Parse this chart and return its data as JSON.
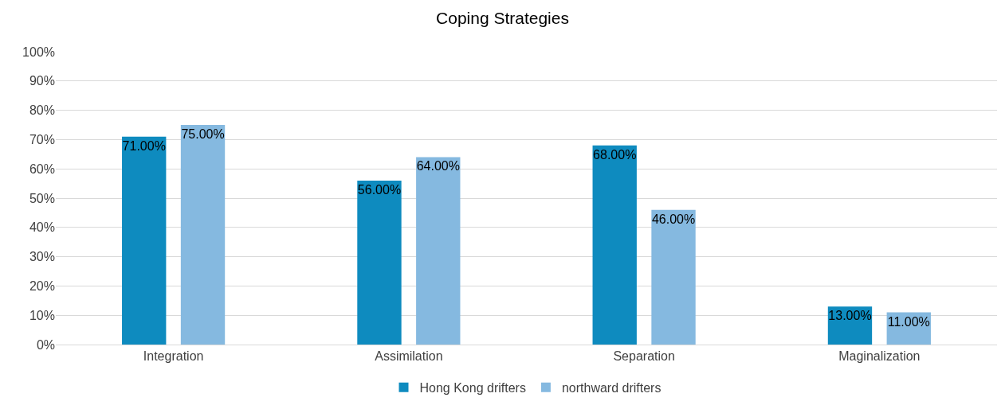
{
  "chart_data": {
    "type": "bar",
    "title": "Coping Strategies",
    "categories": [
      "Integration",
      "Assimilation",
      "Separation",
      "Maginalization"
    ],
    "series": [
      {
        "name": "Hong Kong drifters",
        "color": "#0e8bbf",
        "values": [
          71,
          56,
          68,
          13
        ],
        "value_labels": [
          "71.00%",
          "56.00%",
          "68.00%",
          "13.00%"
        ]
      },
      {
        "name": "northward drifters",
        "color": "#85b9e0",
        "values": [
          75,
          64,
          46,
          11
        ],
        "value_labels": [
          "75.00%",
          "64.00%",
          "46.00%",
          "11.00%"
        ]
      }
    ],
    "ylim": [
      0,
      100
    ],
    "yticks": [
      {
        "value": 0,
        "label": "0%"
      },
      {
        "value": 10,
        "label": "10%"
      },
      {
        "value": 20,
        "label": "20%"
      },
      {
        "value": 30,
        "label": "30%"
      },
      {
        "value": 40,
        "label": "40%"
      },
      {
        "value": 50,
        "label": "50%"
      },
      {
        "value": 60,
        "label": "60%"
      },
      {
        "value": 70,
        "label": "70%"
      },
      {
        "value": 80,
        "label": "80%"
      },
      {
        "value": 90,
        "label": "90%"
      },
      {
        "value": 100,
        "label": "100%"
      }
    ],
    "grid": "y",
    "legend": "bottom"
  }
}
